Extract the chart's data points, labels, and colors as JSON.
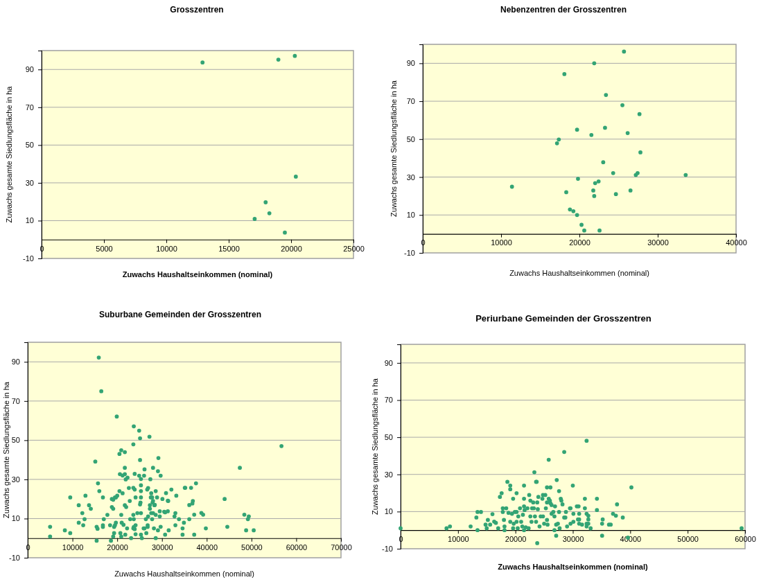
{
  "chart_data": [
    {
      "type": "scatter",
      "title": "Grosszentren",
      "xlabel": "Zuwachs Haushaltseinkommen (nominal)",
      "ylabel": "Zuwachs gesamte Siedlungsfläche in ha",
      "xlim": [
        0,
        25000
      ],
      "ylim": [
        -10,
        100
      ],
      "xticks": [
        0,
        5000,
        10000,
        15000,
        20000,
        25000
      ],
      "yticks": [
        -10,
        10,
        30,
        50,
        70,
        90
      ],
      "grid": "y",
      "marker": "circle",
      "series": [
        {
          "color": "#33a474",
          "x": [
            12900,
            18980,
            20300,
            20380,
            17960,
            18260,
            17080,
            19500
          ],
          "values": [
            93.7,
            95.2,
            97.2,
            33.3,
            19.7,
            13.9,
            10.9,
            3.7
          ]
        }
      ]
    },
    {
      "type": "scatter",
      "title": "Nebenzentren der Grosszentren",
      "xlabel": "Zuwachs Haushaltseinkommen (nominal)",
      "ylabel": "Zuwachs gesamte Siedlungsfläche in ha",
      "xlim": [
        0,
        40000
      ],
      "ylim": [
        -10,
        100
      ],
      "xticks": [
        0,
        10000,
        20000,
        30000,
        40000
      ],
      "yticks": [
        -10,
        10,
        30,
        50,
        70,
        90
      ],
      "grid": "y",
      "marker": "circle",
      "series": [
        {
          "color": "#33a474",
          "x": [
            25690,
            21890,
            18080,
            23390,
            25490,
            27670,
            19700,
            23270,
            26160,
            21530,
            17370,
            17140,
            27790,
            23040,
            24310,
            27430,
            27200,
            33570,
            19820,
            22450,
            22010,
            11390,
            21770,
            26520,
            18320,
            24660,
            21890,
            18790,
            19230,
            19700,
            20270,
            20620,
            22570
          ],
          "values": [
            96.2,
            90,
            84.3,
            73.3,
            67.9,
            63.2,
            55,
            56,
            53.2,
            52.2,
            49.8,
            47.8,
            43,
            37.8,
            32.1,
            32.1,
            31.1,
            31.1,
            29.1,
            27.7,
            26.8,
            24.9,
            22.9,
            22.9,
            22,
            21,
            20,
            12.9,
            12,
            10,
            4.8,
            1.8,
            1.8
          ]
        }
      ]
    },
    {
      "type": "scatter",
      "title": "Suburbane Gemeinden der Grosszentren",
      "xlabel": "Zuwachs Haushaltseinkommen (nominal)",
      "ylabel": "Zuwachs gesamte Siedlungsfläche in ha",
      "xlim": [
        0,
        70000
      ],
      "ylim": [
        -10,
        100
      ],
      "xticks": [
        0,
        10000,
        20000,
        30000,
        40000,
        50000,
        60000,
        70000
      ],
      "yticks": [
        -10,
        10,
        30,
        50,
        70,
        90
      ],
      "grid": "y",
      "marker": "circle",
      "series": [
        {
          "color": "#33a474",
          "x": [
            15880,
            16440,
            19900,
            23700,
            24900,
            25100,
            27200,
            23600,
            20900,
            20500,
            21700,
            29200,
            25100,
            15100,
            21700,
            28000,
            26100,
            20600,
            21200,
            21700,
            23900,
            29100,
            29700,
            24900,
            26000,
            22300,
            21900,
            25300,
            27400,
            15700,
            25300,
            22600,
            23600,
            23900,
            26900,
            26700,
            32100,
            35200,
            16000,
            20500,
            25300,
            28600,
            27600,
            21200,
            12900,
            9500,
            16800,
            20000,
            19700,
            24100,
            25300,
            27500,
            27800,
            28900,
            30900,
            33200,
            30100,
            18800,
            19100,
            19500,
            22800,
            25200,
            25100,
            28000,
            27900,
            28400,
            31300,
            31400,
            11400,
            13700,
            18800,
            21700,
            22000,
            14100,
            19100,
            27300,
            27300,
            28300,
            12200,
            17800,
            20900,
            23600,
            24500,
            25300,
            27600,
            26900,
            28000,
            28600,
            29500,
            29500,
            30500,
            30700,
            31300,
            32800,
            33000,
            33800,
            11400,
            12700,
            12400,
            17000,
            22900,
            23700,
            26400,
            27800,
            19700,
            21000,
            21400,
            16800,
            16800,
            18400,
            19300,
            19500,
            23700,
            24100,
            26800,
            26800,
            33000,
            34900,
            5000,
            15400,
            15600,
            8300,
            9500,
            5000,
            22200,
            23600,
            23900,
            25900,
            26100,
            28200,
            29700,
            29100,
            31500,
            34600,
            19300,
            20700,
            21800,
            24100,
            26500,
            25300,
            30700,
            34600,
            19100,
            20900,
            23100,
            25500,
            28600,
            15400,
            18600,
            56700,
            47400,
            37600,
            35100,
            36500,
            44000,
            36900,
            36800,
            36100,
            38800,
            39200,
            37200,
            48400,
            49400,
            49200,
            36100,
            39800,
            44600,
            48800,
            50500,
            37200
          ],
          "values": [
            92.2,
            75,
            62.1,
            57.1,
            54.9,
            51,
            51.8,
            47.9,
            44.9,
            43,
            43.9,
            40.9,
            39.9,
            39.1,
            35.9,
            35.9,
            35.1,
            32.7,
            32,
            32.7,
            32.8,
            34.2,
            31.9,
            31.9,
            31.9,
            30.9,
            30,
            30.2,
            30.1,
            28,
            27,
            25.6,
            25.7,
            24.8,
            25.6,
            24.8,
            24.8,
            25.7,
            24,
            24,
            24,
            24,
            22.9,
            22.9,
            21.7,
            20.8,
            20.8,
            21.7,
            20.8,
            20.8,
            20.8,
            20.8,
            20.8,
            20.8,
            23,
            21.7,
            20,
            20,
            19.6,
            20.8,
            19,
            18.2,
            17.2,
            19,
            18.2,
            17,
            19.1,
            19,
            16.8,
            16.8,
            15.9,
            16.8,
            15.9,
            15,
            15,
            16.8,
            15,
            16.8,
            12.8,
            11.9,
            11.9,
            11.9,
            12.8,
            12.8,
            12.8,
            11.1,
            12.8,
            11.9,
            13.7,
            11.1,
            13.5,
            13.2,
            13.7,
            11.1,
            12.8,
            9.7,
            7.9,
            9.7,
            6.6,
            9.7,
            9.7,
            9.7,
            9.7,
            9.7,
            7.9,
            7.9,
            6.8,
            6.6,
            5.7,
            6.6,
            5.7,
            6.6,
            5.7,
            6.6,
            6.6,
            5.7,
            6.6,
            7.9,
            5.8,
            5.8,
            4.8,
            4,
            2.6,
            0.8,
            5,
            5,
            4.6,
            5,
            5,
            5,
            5.8,
            4,
            4,
            5,
            2.6,
            2.6,
            1.8,
            2,
            2.6,
            1.8,
            1.8,
            1.8,
            0.8,
            0.8,
            0,
            0,
            0,
            -1.3,
            -1.3,
            47,
            35.9,
            28,
            25.7,
            25.7,
            20,
            19,
            17.7,
            16.9,
            12.9,
            12,
            12,
            12,
            11.1,
            9.7,
            9.7,
            5,
            5.8,
            4,
            4,
            1.8
          ]
        }
      ]
    },
    {
      "type": "scatter",
      "title": "Periurbane Gemeinden der Grosszentren",
      "xlabel": "Zuwachs Haushaltseinkommen (nominal)",
      "ylabel": "Zuwachs gesamte Siedlungsfläche in ha",
      "xlim": [
        0,
        60000
      ],
      "ylim": [
        -10,
        100
      ],
      "xticks": [
        0,
        10000,
        20000,
        30000,
        40000,
        50000,
        60000
      ],
      "yticks": [
        -10,
        10,
        30,
        50,
        70,
        90
      ],
      "grid": "y",
      "marker": "circle",
      "series": [
        {
          "color": "#33a474",
          "x": [
            0,
            8000,
            8600,
            12200,
            13400,
            13200,
            13400,
            14000,
            14800,
            15200,
            15000,
            15600,
            16000,
            16300,
            16600,
            17000,
            17300,
            17600,
            17800,
            17800,
            18000,
            18100,
            18100,
            18400,
            18600,
            18800,
            19100,
            19100,
            19100,
            19400,
            19600,
            19600,
            19700,
            19900,
            20200,
            20200,
            20200,
            20400,
            20500,
            20800,
            21000,
            21200,
            21300,
            21500,
            21500,
            21500,
            21600,
            21500,
            21800,
            22100,
            22300,
            22400,
            22600,
            22600,
            22900,
            22800,
            23100,
            23300,
            23200,
            23400,
            23600,
            23700,
            23600,
            23800,
            23900,
            24000,
            24200,
            24400,
            24700,
            24800,
            24800,
            25000,
            25200,
            25300,
            25500,
            25500,
            25500,
            25600,
            25800,
            25800,
            26000,
            26100,
            26100,
            26300,
            26300,
            26600,
            26800,
            26800,
            26900,
            27100,
            27200,
            27100,
            27400,
            27600,
            27600,
            27700,
            27900,
            28000,
            28200,
            28500,
            28500,
            28700,
            28800,
            29000,
            29500,
            29600,
            23800,
            30000,
            30100,
            30100,
            29600,
            31100,
            31100,
            30700,
            31000,
            30900,
            31100,
            31600,
            32100,
            32100,
            32400,
            32700,
            32700,
            32400,
            32700,
            32400,
            33100,
            32400,
            34200,
            34200,
            35100,
            35200,
            35100,
            36300,
            36600,
            37000,
            37500,
            37700,
            38700,
            39600,
            40200,
            59400
          ],
          "values": [
            1,
            1,
            2,
            2,
            0,
            6.8,
            9.8,
            9.8,
            3,
            5.5,
            1,
            3,
            8.6,
            4.6,
            3.9,
            1,
            17.9,
            19.9,
            9.8,
            11.8,
            5.5,
            2,
            0,
            11.8,
            26,
            9.3,
            24,
            22,
            4.5,
            8.8,
            16.9,
            1,
            3.5,
            9.8,
            19.9,
            9.8,
            4.5,
            1,
            7.4,
            11.8,
            4.5,
            2,
            8.3,
            24,
            16.9,
            12.8,
            10.8,
            0,
            1.5,
            11.8,
            1,
            18.9,
            15.9,
            7.4,
            11.8,
            4.5,
            14.9,
            31.2,
            11.8,
            7.4,
            26,
            26,
            4.5,
            14.9,
            11.3,
            17.9,
            2,
            7.4,
            16.9,
            18.9,
            7.4,
            3.5,
            18.9,
            11.8,
            23,
            14.9,
            5.5,
            3,
            37.9,
            16.9,
            15.9,
            23,
            14.5,
            8.8,
            13.5,
            9.8,
            7.4,
            0,
            12.8,
            -3,
            27,
            3,
            3.5,
            21,
            9.8,
            1,
            16.9,
            15.9,
            13.9,
            6.8,
            42.1,
            6.8,
            9.8,
            2,
            11.8,
            3.5,
            -7,
            24,
            8.8,
            4.5,
            11.8,
            8.8,
            5.8,
            12.8,
            12.8,
            5.8,
            3.5,
            3,
            16.9,
            11.8,
            8.8,
            7.8,
            5.8,
            3.5,
            3.5,
            2,
            1,
            48.1,
            16.9,
            10.8,
            3.5,
            5.8,
            -3,
            3,
            3,
            8.8,
            7.8,
            13.9,
            6.8,
            -4,
            23,
            1
          ]
        }
      ]
    }
  ]
}
